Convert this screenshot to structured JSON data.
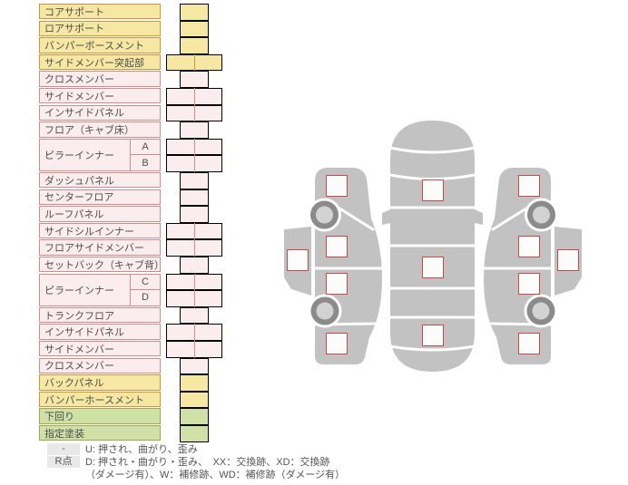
{
  "colors": {
    "yellow_fill": "#f6e8a3",
    "yellow_border": "#c9963e",
    "pink_fill": "#fbeded",
    "pink_border": "#d28b8b",
    "green_fill": "#cfe1a6",
    "green_border": "#a4a455",
    "text": "#4d4d4d",
    "legend_text": "#555555",
    "badge_bg": "#e9e9e9",
    "car_gray": "#c2c2c2",
    "wheel_dark": "#8b8b8b",
    "wheel_light": "#d2d2d2",
    "checkbox_border": "#c94a44",
    "checkbox_fill": "#fcfcfc"
  },
  "table": {
    "rows": [
      {
        "label": "コアサポート",
        "color": "yellow",
        "cells": 1
      },
      {
        "label": "ロアサポート",
        "color": "yellow",
        "cells": 1
      },
      {
        "label": "バンパーボースメント",
        "color": "yellow",
        "cells": 1
      },
      {
        "label": "サイドメンバー突起部",
        "color": "yellow",
        "cells": 2
      },
      {
        "label": "クロスメンバー",
        "color": "pink",
        "cells": 1
      },
      {
        "label": "サイドメンバー",
        "color": "pink",
        "cells": 2
      },
      {
        "label": "インサイドパネル",
        "color": "pink",
        "cells": 2
      },
      {
        "label": "フロア（キャブ床）",
        "color": "pink",
        "cells": 1
      },
      {
        "label": "ピラーインナー",
        "color": "pink",
        "cells": 2,
        "subs": [
          "A",
          "B"
        ]
      },
      {
        "label": "ダッシュパネル",
        "color": "pink",
        "cells": 1
      },
      {
        "label": "センターフロア",
        "color": "pink",
        "cells": 1
      },
      {
        "label": "ルーフパネル",
        "color": "pink",
        "cells": 1
      },
      {
        "label": "サイドシルインナー",
        "color": "pink",
        "cells": 2
      },
      {
        "label": "フロアサイドメンバー",
        "color": "pink",
        "cells": 2
      },
      {
        "label": "セットバック（キャブ背）",
        "color": "pink",
        "cells": 1
      },
      {
        "label": "ピラーインナー",
        "color": "pink",
        "cells": 2,
        "subs": [
          "C",
          "D"
        ]
      },
      {
        "label": "トランクフロア",
        "color": "pink",
        "cells": 1
      },
      {
        "label": "インサイドパネル",
        "color": "pink",
        "cells": 2
      },
      {
        "label": "サイドメンバー",
        "color": "pink",
        "cells": 2
      },
      {
        "label": "クロスメンバー",
        "color": "pink",
        "cells": 1
      },
      {
        "label": "バックパネル",
        "color": "yellow",
        "cells": 1
      },
      {
        "label": "バンパーホースメント",
        "color": "yellow",
        "cells": 1
      },
      {
        "label": "下回り",
        "color": "green",
        "cells": 1
      },
      {
        "label": "指定塗装",
        "color": "green",
        "cells": 1
      }
    ]
  },
  "legend": {
    "rows": [
      {
        "badge": "-",
        "text": "U: 押され、曲がり、歪み"
      },
      {
        "badge": "R点",
        "text": "D: 押され・曲がり・歪み、　XX：交換跡、XD：交換跡"
      },
      {
        "badge": "",
        "text": "（ダメージ有）、W：補修跡、WD：補修跡（ダメージ有）"
      }
    ]
  },
  "diagram": {
    "views": [
      "left-side-view",
      "top-view",
      "right-side-view"
    ],
    "checkpoints": [
      "left-front-fender",
      "left-front-door",
      "left-rear-door",
      "left-quarter-panel",
      "left-rocker-sill",
      "hood",
      "roof",
      "trunk",
      "right-front-fender",
      "right-front-door",
      "right-rear-door",
      "right-quarter-panel",
      "right-rocker-sill"
    ]
  }
}
